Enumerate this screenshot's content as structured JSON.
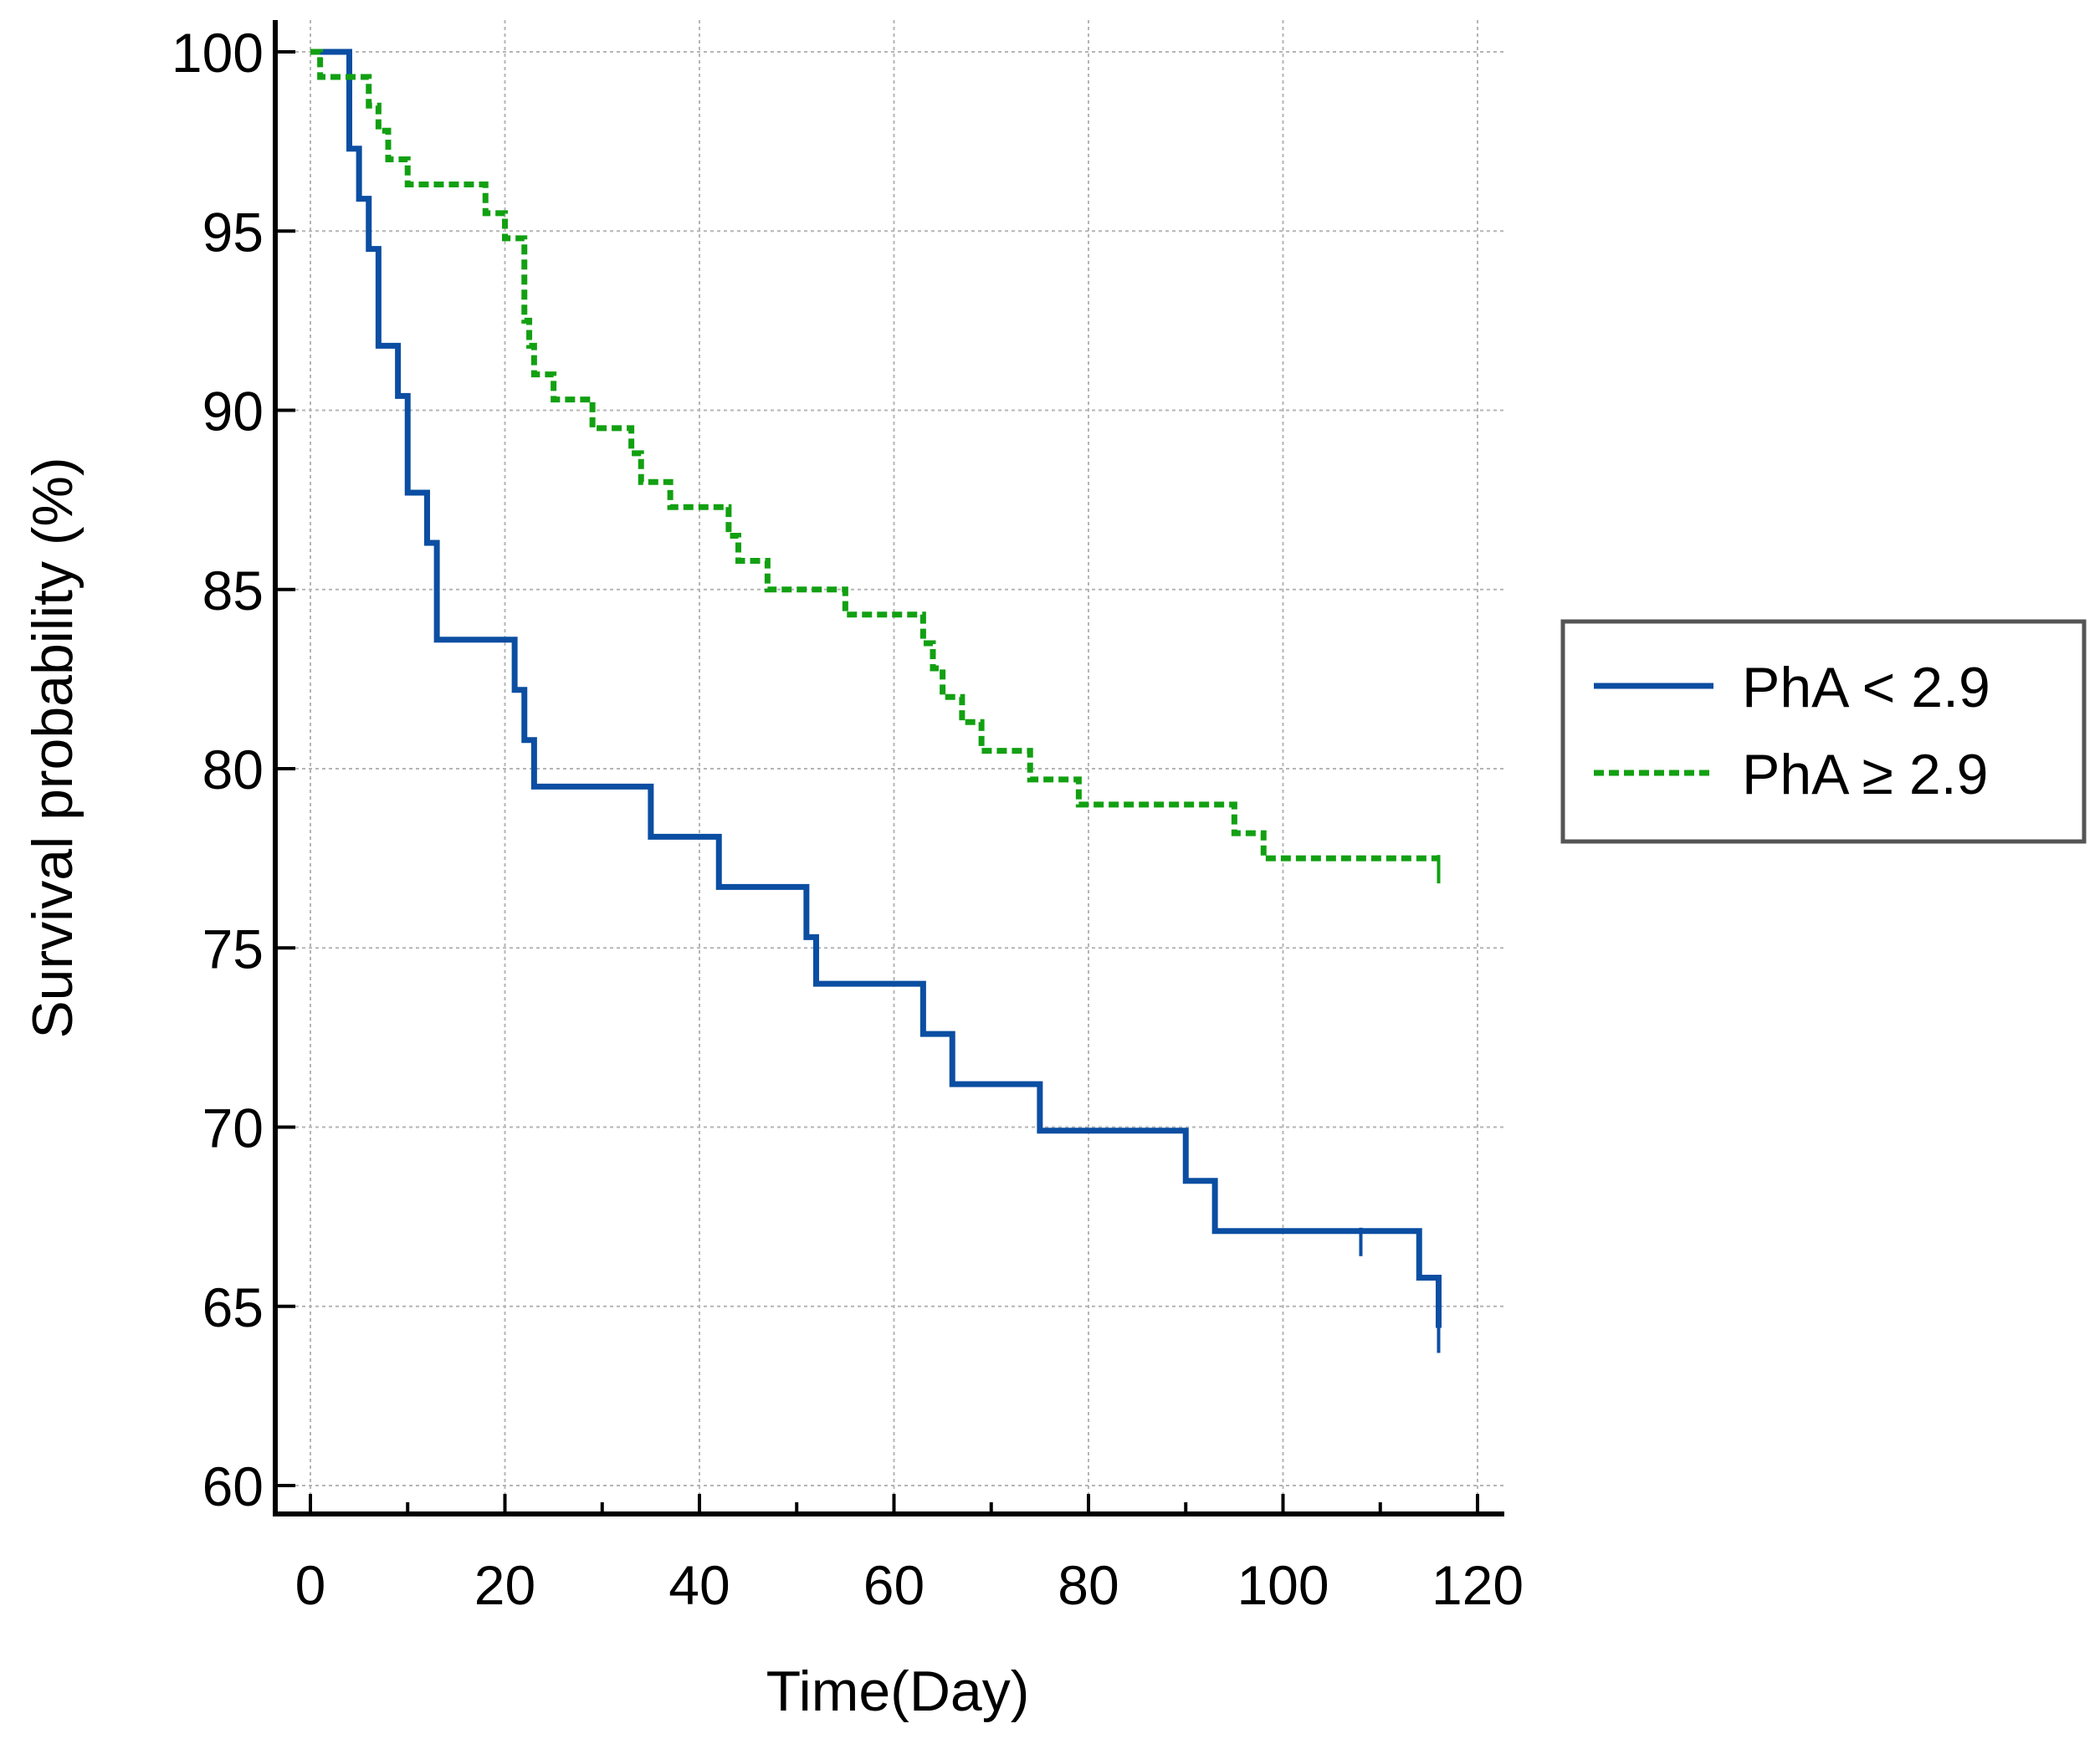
{
  "chart_data": {
    "type": "line",
    "subtype": "kaplan-meier step",
    "title": "",
    "xlabel": "Time(Day)",
    "ylabel": "Survival probability (%)",
    "xlim": [
      0,
      120
    ],
    "ylim": [
      60,
      100
    ],
    "xticks": [
      0,
      20,
      40,
      60,
      80,
      100,
      120
    ],
    "yticks": [
      60,
      65,
      70,
      75,
      80,
      85,
      90,
      95,
      100
    ],
    "grid": true,
    "legend_position": "right",
    "series": [
      {
        "name": "PhA < 2.9",
        "color": "#0b4ea2",
        "line_style": "solid",
        "x": [
          0,
          4,
          5,
          6,
          7,
          9,
          10,
          12,
          13,
          21,
          22,
          23,
          35,
          42,
          51,
          52,
          63,
          66,
          75,
          90,
          93,
          114,
          116
        ],
        "y": [
          100,
          97.3,
          95.9,
          94.5,
          91.8,
          90.4,
          87.7,
          86.3,
          83.6,
          82.2,
          80.8,
          79.5,
          78.1,
          76.7,
          75.3,
          74.0,
          72.6,
          71.2,
          69.9,
          68.5,
          67.1,
          65.8,
          64.4
        ],
        "end_x": 116,
        "censor_marks": [
          {
            "x": 108,
            "y": 67.1
          },
          {
            "x": 116,
            "y": 64.4
          }
        ]
      },
      {
        "name": "PhA ≥ 2.9",
        "color": "#12a012",
        "line_style": "dashed",
        "x": [
          0,
          1,
          6,
          7,
          8,
          10,
          18,
          20,
          22,
          22.5,
          23,
          25,
          29,
          33,
          34,
          37,
          43,
          44,
          47,
          55,
          63,
          64,
          65,
          67,
          69,
          74,
          79,
          95,
          98,
          100,
          116
        ],
        "y": [
          100,
          99.3,
          98.5,
          97.8,
          97.0,
          96.3,
          95.5,
          94.8,
          92.5,
          91.8,
          91.0,
          90.3,
          89.5,
          88.8,
          88.0,
          87.3,
          86.5,
          85.8,
          85.0,
          84.3,
          83.5,
          82.8,
          82.0,
          81.3,
          80.5,
          79.7,
          79.0,
          78.2,
          77.5,
          77.5,
          77.5
        ],
        "end_x": 116,
        "censor_marks": [
          {
            "x": 116,
            "y": 77.5
          }
        ]
      }
    ]
  }
}
